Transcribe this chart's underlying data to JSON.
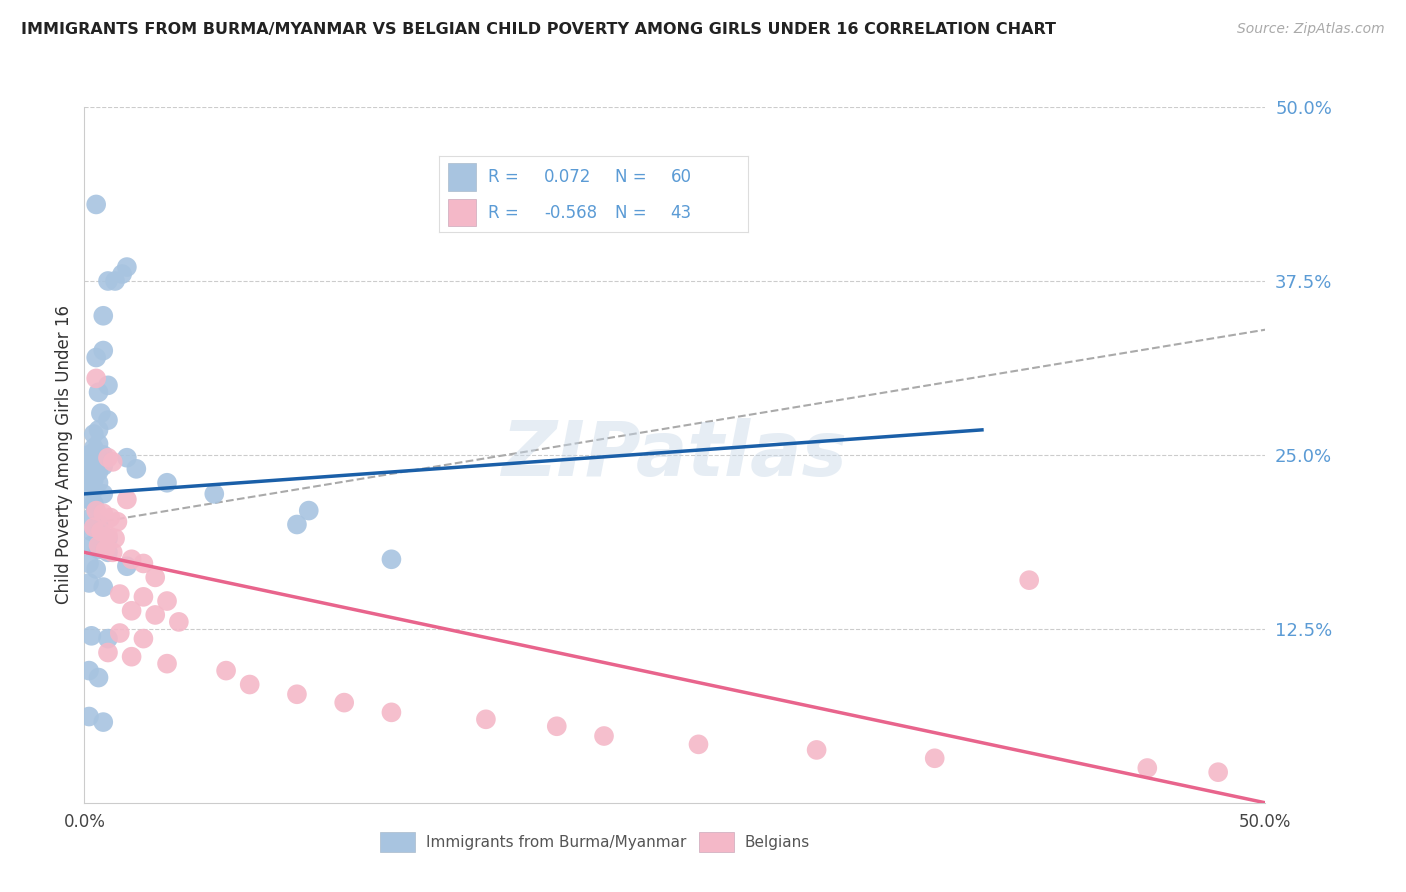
{
  "title": "IMMIGRANTS FROM BURMA/MYANMAR VS BELGIAN CHILD POVERTY AMONG GIRLS UNDER 16 CORRELATION CHART",
  "source": "Source: ZipAtlas.com",
  "ylabel": "Child Poverty Among Girls Under 16",
  "xlim": [
    0.0,
    0.5
  ],
  "ylim": [
    0.0,
    0.5
  ],
  "yticks": [
    0.0,
    0.125,
    0.25,
    0.375,
    0.5
  ],
  "ytick_labels": [
    "",
    "12.5%",
    "25.0%",
    "37.5%",
    "50.0%"
  ],
  "blue_color": "#a8c4e0",
  "pink_color": "#f4b8c8",
  "blue_line_color": "#1a5fa8",
  "pink_line_color": "#e8648c",
  "gray_dash_color": "#aaaaaa",
  "blue_line": [
    [
      0.0,
      0.222
    ],
    [
      0.38,
      0.268
    ]
  ],
  "gray_dash_line": [
    [
      0.0,
      0.2
    ],
    [
      0.5,
      0.34
    ]
  ],
  "pink_line": [
    [
      0.0,
      0.18
    ],
    [
      0.5,
      0.0
    ]
  ],
  "blue_scatter": [
    [
      0.005,
      0.43
    ],
    [
      0.01,
      0.375
    ],
    [
      0.013,
      0.375
    ],
    [
      0.016,
      0.38
    ],
    [
      0.018,
      0.385
    ],
    [
      0.008,
      0.35
    ],
    [
      0.005,
      0.32
    ],
    [
      0.008,
      0.325
    ],
    [
      0.006,
      0.295
    ],
    [
      0.01,
      0.3
    ],
    [
      0.007,
      0.28
    ],
    [
      0.01,
      0.275
    ],
    [
      0.004,
      0.265
    ],
    [
      0.006,
      0.268
    ],
    [
      0.004,
      0.255
    ],
    [
      0.006,
      0.258
    ],
    [
      0.002,
      0.25
    ],
    [
      0.004,
      0.252
    ],
    [
      0.006,
      0.248
    ],
    [
      0.008,
      0.25
    ],
    [
      0.002,
      0.242
    ],
    [
      0.004,
      0.24
    ],
    [
      0.006,
      0.238
    ],
    [
      0.008,
      0.242
    ],
    [
      0.002,
      0.235
    ],
    [
      0.004,
      0.232
    ],
    [
      0.006,
      0.23
    ],
    [
      0.002,
      0.228
    ],
    [
      0.004,
      0.225
    ],
    [
      0.008,
      0.222
    ],
    [
      0.002,
      0.218
    ],
    [
      0.004,
      0.215
    ],
    [
      0.003,
      0.205
    ],
    [
      0.006,
      0.2
    ],
    [
      0.003,
      0.195
    ],
    [
      0.007,
      0.192
    ],
    [
      0.01,
      0.19
    ],
    [
      0.003,
      0.185
    ],
    [
      0.006,
      0.182
    ],
    [
      0.01,
      0.18
    ],
    [
      0.002,
      0.172
    ],
    [
      0.005,
      0.168
    ],
    [
      0.018,
      0.17
    ],
    [
      0.002,
      0.158
    ],
    [
      0.008,
      0.155
    ],
    [
      0.018,
      0.248
    ],
    [
      0.022,
      0.24
    ],
    [
      0.035,
      0.23
    ],
    [
      0.055,
      0.222
    ],
    [
      0.09,
      0.2
    ],
    [
      0.095,
      0.21
    ],
    [
      0.13,
      0.175
    ],
    [
      0.003,
      0.12
    ],
    [
      0.01,
      0.118
    ],
    [
      0.002,
      0.095
    ],
    [
      0.006,
      0.09
    ],
    [
      0.002,
      0.062
    ],
    [
      0.008,
      0.058
    ]
  ],
  "pink_scatter": [
    [
      0.005,
      0.305
    ],
    [
      0.01,
      0.248
    ],
    [
      0.012,
      0.245
    ],
    [
      0.018,
      0.218
    ],
    [
      0.005,
      0.21
    ],
    [
      0.008,
      0.208
    ],
    [
      0.011,
      0.205
    ],
    [
      0.014,
      0.202
    ],
    [
      0.004,
      0.198
    ],
    [
      0.007,
      0.195
    ],
    [
      0.01,
      0.192
    ],
    [
      0.013,
      0.19
    ],
    [
      0.006,
      0.185
    ],
    [
      0.009,
      0.182
    ],
    [
      0.012,
      0.18
    ],
    [
      0.02,
      0.175
    ],
    [
      0.025,
      0.172
    ],
    [
      0.03,
      0.162
    ],
    [
      0.015,
      0.15
    ],
    [
      0.025,
      0.148
    ],
    [
      0.035,
      0.145
    ],
    [
      0.02,
      0.138
    ],
    [
      0.03,
      0.135
    ],
    [
      0.04,
      0.13
    ],
    [
      0.015,
      0.122
    ],
    [
      0.025,
      0.118
    ],
    [
      0.01,
      0.108
    ],
    [
      0.02,
      0.105
    ],
    [
      0.035,
      0.1
    ],
    [
      0.06,
      0.095
    ],
    [
      0.07,
      0.085
    ],
    [
      0.09,
      0.078
    ],
    [
      0.11,
      0.072
    ],
    [
      0.13,
      0.065
    ],
    [
      0.17,
      0.06
    ],
    [
      0.2,
      0.055
    ],
    [
      0.22,
      0.048
    ],
    [
      0.26,
      0.042
    ],
    [
      0.31,
      0.038
    ],
    [
      0.36,
      0.032
    ],
    [
      0.4,
      0.16
    ],
    [
      0.45,
      0.025
    ],
    [
      0.48,
      0.022
    ]
  ],
  "watermark": "ZIPatlas",
  "background_color": "#ffffff",
  "grid_color": "#cccccc",
  "tick_color": "#5b9bd5",
  "legend_text_color": "#5b9bd5"
}
